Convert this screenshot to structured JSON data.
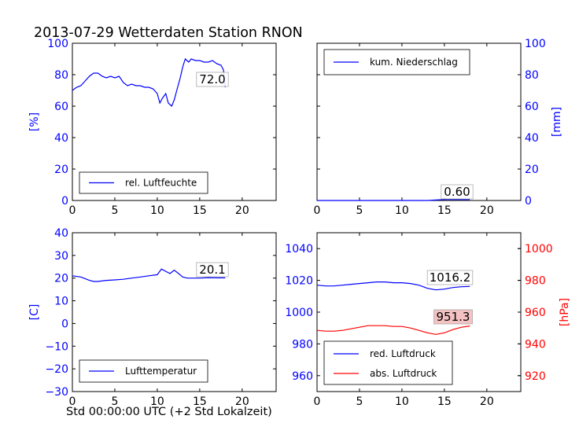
{
  "figure": {
    "title": "2013-07-29 Wetterdaten Station RNON",
    "xlabel": "Std 00:00:00 UTC (+2 Std Lokalzeit)"
  },
  "colors": {
    "axis_left": "#0000ff",
    "axis_right_pressure": "#ff0000",
    "line_blue": "#0000ff",
    "line_red": "#ff0000",
    "annot_bg_red": "#f4c2c2"
  },
  "chart_data": [
    {
      "id": "humidity",
      "type": "line",
      "xlim": [
        0,
        24
      ],
      "xticks": [
        0,
        5,
        10,
        15,
        20
      ],
      "ylim": [
        0,
        100
      ],
      "yticks": [
        0,
        20,
        40,
        60,
        80,
        100
      ],
      "ylabel": "[%]",
      "series": [
        {
          "name": "rel. Luftfeuchte",
          "color": "#0000ff",
          "x": [
            0,
            0.5,
            1,
            1.5,
            2,
            2.5,
            3,
            3.5,
            4,
            4.5,
            5,
            5.5,
            6,
            6.5,
            7,
            7.5,
            8,
            8.5,
            9,
            9.5,
            10,
            10.3,
            10.6,
            11,
            11.3,
            11.7,
            12,
            12.3,
            12.7,
            13,
            13.3,
            13.7,
            14,
            14.5,
            15,
            15.5,
            16,
            16.5,
            17,
            17.5,
            17.8,
            18
          ],
          "y": [
            70,
            72,
            73,
            76,
            79,
            81,
            81,
            79,
            78,
            79,
            78,
            79,
            75,
            73,
            74,
            73,
            73,
            72,
            72,
            71,
            68,
            62,
            65,
            68,
            62,
            60,
            64,
            70,
            78,
            85,
            90,
            88,
            90,
            89,
            89,
            88,
            88,
            89,
            87,
            86,
            83,
            72
          ]
        }
      ],
      "annotation": "72.0",
      "legend": "lower-left"
    },
    {
      "id": "precip",
      "type": "line",
      "xlim": [
        0,
        24
      ],
      "xticks": [
        0,
        5,
        10,
        15,
        20
      ],
      "ylim": [
        0,
        100
      ],
      "yticks": [
        0,
        20,
        40,
        60,
        80,
        100
      ],
      "ylabel": "[mm]",
      "series": [
        {
          "name": "kum. Niederschlag",
          "color": "#0000ff",
          "x": [
            0,
            13,
            14,
            15,
            18
          ],
          "y": [
            0,
            0,
            0.3,
            0.6,
            0.6
          ]
        }
      ],
      "annotation": "0.60",
      "legend": "upper-left"
    },
    {
      "id": "temperature",
      "type": "line",
      "xlim": [
        0,
        24
      ],
      "xticks": [
        0,
        5,
        10,
        15,
        20
      ],
      "ylim": [
        -30,
        40
      ],
      "yticks": [
        -30,
        -20,
        -10,
        0,
        10,
        20,
        30,
        40
      ],
      "ylabel": "[C]",
      "series": [
        {
          "name": "Lufttemperatur",
          "color": "#0000ff",
          "x": [
            0,
            1,
            2,
            2.5,
            3,
            4,
            5,
            6,
            7,
            8,
            9,
            10,
            10.5,
            11,
            11.5,
            12,
            12.5,
            13,
            13.5,
            14,
            15,
            16,
            17,
            18
          ],
          "y": [
            21,
            20.5,
            19,
            18.5,
            18.5,
            19,
            19.2,
            19.5,
            20,
            20.5,
            21,
            21.5,
            24,
            23,
            22,
            23.5,
            22,
            20.5,
            20,
            20,
            20,
            20.2,
            20.1,
            20.1
          ]
        }
      ],
      "annotation": "20.1",
      "legend": "lower-left"
    },
    {
      "id": "pressure",
      "type": "line",
      "xlim": [
        0,
        24
      ],
      "xticks": [
        0,
        5,
        10,
        15,
        20
      ],
      "ylim": [
        950,
        1050
      ],
      "yticks": [
        960,
        980,
        1000,
        1020,
        1040
      ],
      "ylim_right": [
        910,
        1010
      ],
      "yticks_right": [
        920,
        940,
        960,
        980,
        1000
      ],
      "ylabel_right": "[hPa]",
      "series": [
        {
          "name": "red. Luftdruck",
          "color": "#0000ff",
          "axis": "left",
          "x": [
            0,
            1,
            2,
            3,
            4,
            5,
            6,
            7,
            8,
            9,
            10,
            11,
            12,
            13,
            14,
            15,
            16,
            17,
            18
          ],
          "y": [
            1017,
            1016.5,
            1016.5,
            1017,
            1017.5,
            1018,
            1018.5,
            1019,
            1019,
            1018.5,
            1018.5,
            1018,
            1017,
            1015,
            1014,
            1014.5,
            1015.5,
            1016,
            1016.2
          ]
        },
        {
          "name": "abs. Luftdruck",
          "color": "#ff0000",
          "axis": "right",
          "x": [
            0,
            1,
            2,
            3,
            4,
            5,
            6,
            7,
            8,
            9,
            10,
            11,
            12,
            13,
            14,
            15,
            16,
            17,
            18
          ],
          "y": [
            948.5,
            948,
            948,
            948.5,
            949.5,
            950.5,
            951.5,
            951.5,
            951.5,
            951,
            951,
            950,
            948.5,
            947,
            946,
            947,
            949,
            950.5,
            951.3
          ]
        }
      ],
      "annotation": "1016.2",
      "annotation_right": "951.3",
      "legend": "lower-left"
    }
  ]
}
